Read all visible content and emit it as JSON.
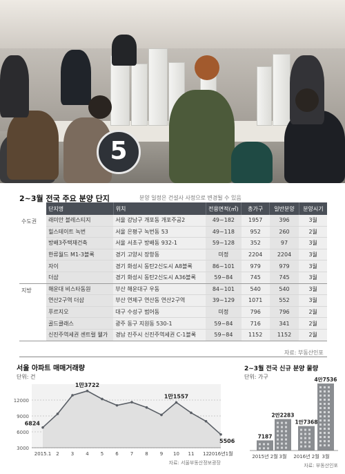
{
  "table": {
    "title": "2~3월 전국 주요 분양 단지",
    "note": "분양 일정은 건설사 사정으로 변경될 수 있음",
    "headers": [
      "단지명",
      "위치",
      "전용면적(㎡)",
      "총가구",
      "일반분양",
      "분양시기"
    ],
    "groups": [
      {
        "region": "수도권",
        "rows": [
          [
            "래미안 블레스티지",
            "서울 강남구 개포동 개포주공2",
            "49~182",
            "1957",
            "396",
            "3월"
          ],
          [
            "힐스테이트 녹번",
            "서울 은평구 녹번동 53",
            "49~118",
            "952",
            "260",
            "2월"
          ],
          [
            "방배3주택재건축",
            "서울 서초구 방배동 932-1",
            "59~128",
            "352",
            "97",
            "3월"
          ],
          [
            "한류월드 M1-3블록",
            "경기 고양시 장항동",
            "미정",
            "2204",
            "2204",
            "3월"
          ],
          [
            "자이",
            "경기 화성시 동탄2신도시 A8블록",
            "86~101",
            "979",
            "979",
            "3월"
          ],
          [
            "더샵",
            "경기 화성시 동탄2신도시 A36블록",
            "59~84",
            "745",
            "745",
            "3월"
          ]
        ]
      },
      {
        "region": "지방",
        "rows": [
          [
            "해운대 비스타동원",
            "부산 해운대구 우동",
            "84~101",
            "540",
            "540",
            "3월"
          ],
          [
            "연산2구역 더샵",
            "부산 연제구 연산동 연산2구역",
            "39~129",
            "1071",
            "552",
            "3월"
          ],
          [
            "푸르지오",
            "대구 수성구 범어동",
            "미정",
            "796",
            "796",
            "2월"
          ],
          [
            "골드클래스",
            "광주 동구 지원동 530-1",
            "59~84",
            "716",
            "341",
            "2월"
          ],
          [
            "신진주역세권 센트럴 웰가",
            "경남 진주시 신진주역세권 C-1블록",
            "59~84",
            "1152",
            "1152",
            "2월"
          ]
        ]
      }
    ],
    "source": "자료: 부동산인포"
  },
  "chart_data": [
    {
      "type": "line",
      "title": "서울 아파트 매매거래량",
      "ylabel": "단위: 건",
      "x": [
        "2015.1",
        "2",
        "3",
        "4",
        "5",
        "6",
        "7",
        "8",
        "9",
        "10",
        "11",
        "12",
        "2016년1월"
      ],
      "values": [
        6824,
        9400,
        12900,
        13722,
        12200,
        11000,
        11600,
        10600,
        9200,
        11557,
        9600,
        8000,
        5506
      ],
      "point_labels": {
        "0": "6824",
        "3": "1만3722",
        "9": "1만1557",
        "12": "5506"
      },
      "y_ticks": [
        3000,
        6000,
        9000,
        12000
      ],
      "ylim": [
        3000,
        15000
      ],
      "source": "자료: 서울부동산정보광장"
    },
    {
      "type": "bar",
      "title": "2~3월 전국 신규 분양 물량",
      "ylabel": "단위: 가구",
      "categories": [
        "2015년 2월",
        "3월",
        "2016년 2월",
        "3월"
      ],
      "values": [
        7187,
        22283,
        17368,
        47536
      ],
      "value_labels": [
        "7187",
        "2만2283",
        "1만7368",
        "4만7536"
      ],
      "ylim": [
        0,
        50000
      ],
      "source": "자료: 부동산인포"
    }
  ]
}
